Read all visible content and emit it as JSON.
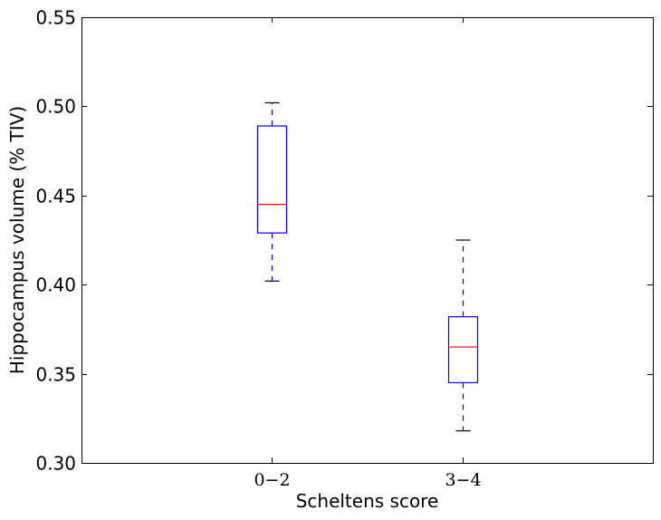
{
  "chart_data": {
    "type": "boxplot",
    "title": "",
    "xlabel": "Scheltens score",
    "ylabel": "Hippocampus volume (% TIV)",
    "ylim": [
      0.3,
      0.55
    ],
    "yticks": [
      "0.30",
      "0.35",
      "0.40",
      "0.45",
      "0.50",
      "0.55"
    ],
    "categories": [
      "0−2",
      "3−4"
    ],
    "boxes": [
      {
        "category": "0−2",
        "whisker_low": 0.402,
        "q1": 0.429,
        "median": 0.445,
        "q3": 0.489,
        "whisker_high": 0.502
      },
      {
        "category": "3−4",
        "whisker_low": 0.318,
        "q1": 0.345,
        "median": 0.365,
        "q3": 0.382,
        "whisker_high": 0.425
      }
    ],
    "colors": {
      "box": "#0000ff",
      "median": "#ff0000",
      "whisker": "#0000ff",
      "cap": "#000000"
    },
    "grid": false,
    "legend": "none"
  }
}
